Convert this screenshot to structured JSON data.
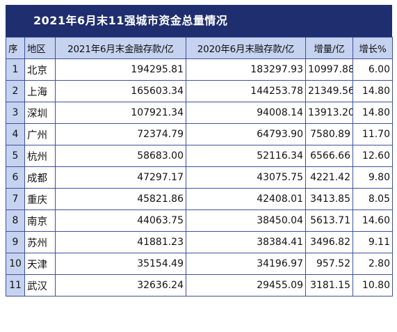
{
  "title": "2021年6月末11强城市资金总量情况",
  "headers": {
    "index": "序",
    "city": "地区",
    "deposit_2021": "2021年6月末金融存款/亿",
    "deposit_2020": "2020年6月末融存款/亿",
    "increase": "增量/亿",
    "growth": "增长%"
  },
  "rows": [
    {
      "index": "1",
      "city": "北京",
      "deposit_2021": "194295.81",
      "deposit_2020": "183297.93",
      "increase": "10997.88",
      "growth": "6.00"
    },
    {
      "index": "2",
      "city": "上海",
      "deposit_2021": "165603.34",
      "deposit_2020": "144253.78",
      "increase": "21349.56",
      "growth": "14.80"
    },
    {
      "index": "3",
      "city": "深圳",
      "deposit_2021": "107921.34",
      "deposit_2020": "94008.14",
      "increase": "13913.20",
      "growth": "14.80"
    },
    {
      "index": "4",
      "city": "广州",
      "deposit_2021": "72374.79",
      "deposit_2020": "64793.90",
      "increase": "7580.89",
      "growth": "11.70"
    },
    {
      "index": "5",
      "city": "杭州",
      "deposit_2021": "58683.00",
      "deposit_2020": "52116.34",
      "increase": "6566.66",
      "growth": "12.60"
    },
    {
      "index": "6",
      "city": "成都",
      "deposit_2021": "47297.17",
      "deposit_2020": "43075.75",
      "increase": "4221.42",
      "growth": "9.80"
    },
    {
      "index": "7",
      "city": "重庆",
      "deposit_2021": "45821.86",
      "deposit_2020": "42408.01",
      "increase": "3413.85",
      "growth": "8.05"
    },
    {
      "index": "8",
      "city": "南京",
      "deposit_2021": "44063.75",
      "deposit_2020": "38450.04",
      "increase": "5613.71",
      "growth": "14.60"
    },
    {
      "index": "9",
      "city": "苏州",
      "deposit_2021": "41881.23",
      "deposit_2020": "38384.41",
      "increase": "3496.82",
      "growth": "9.11"
    },
    {
      "index": "10",
      "city": "天津",
      "deposit_2021": "35154.49",
      "deposit_2020": "34196.97",
      "increase": "957.52",
      "growth": "2.80"
    },
    {
      "index": "11",
      "city": "武汉",
      "deposit_2021": "32636.24",
      "deposit_2020": "29455.09",
      "increase": "3181.15",
      "growth": "10.80"
    }
  ]
}
